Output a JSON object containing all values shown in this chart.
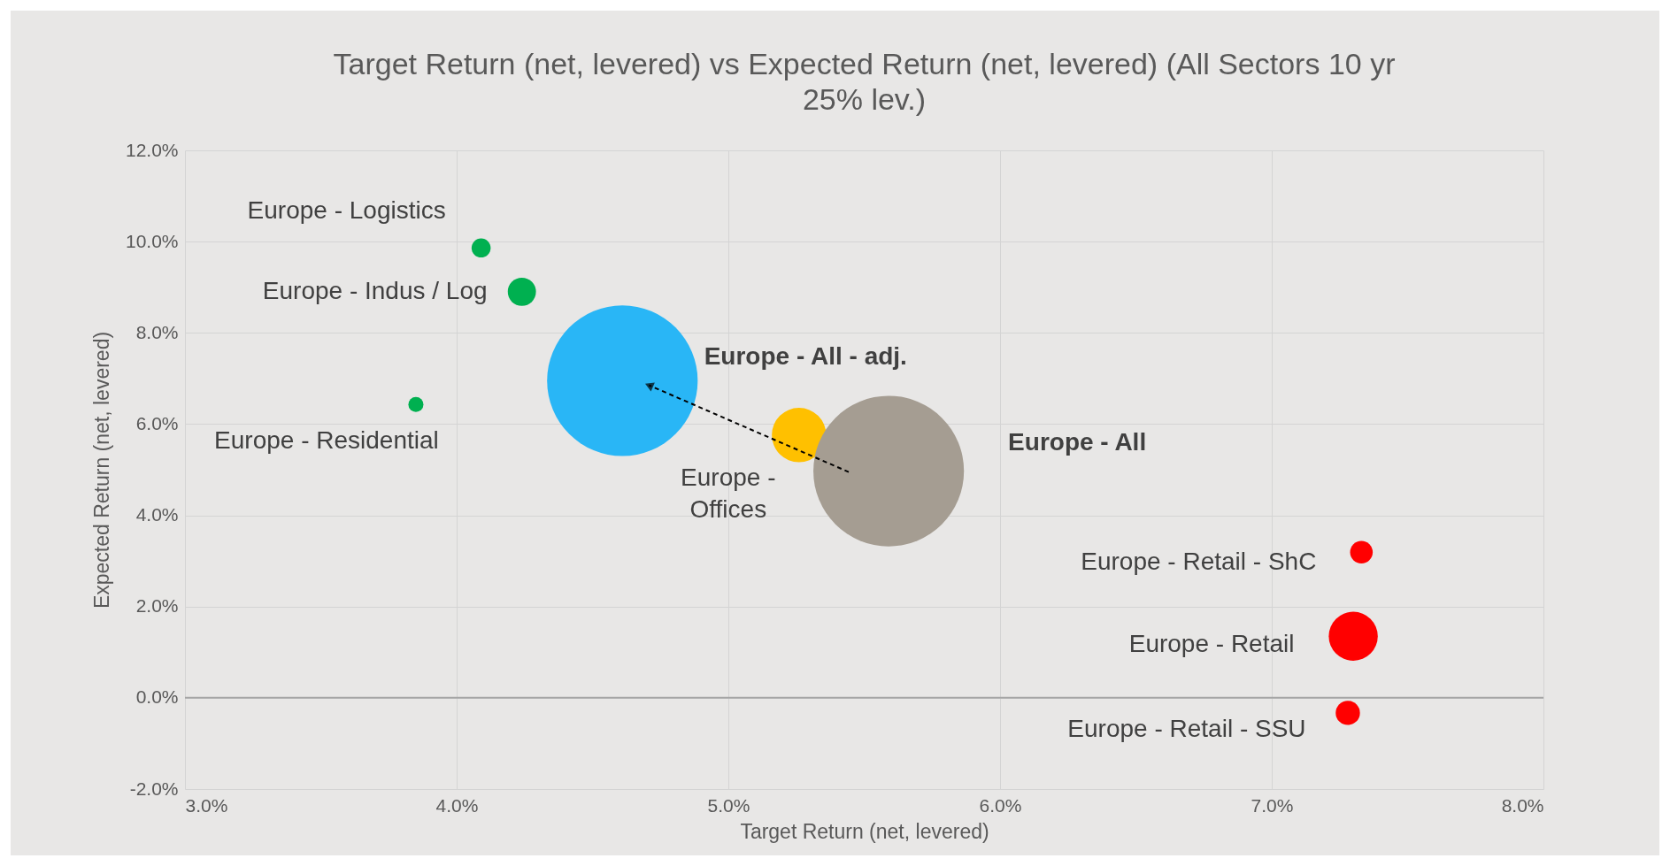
{
  "chart_data": {
    "type": "bubble",
    "title": "Target Return (net, levered) vs Expected Return (net, levered) (All Sectors 10 yr 25% lev.)",
    "xlabel": "Target Return (net, levered)",
    "ylabel": "Expected Return (net, levered)",
    "xlim": [
      3,
      8
    ],
    "ylim": [
      -2,
      12
    ],
    "xticks": [
      {
        "value": 3,
        "label": "3.0%"
      },
      {
        "value": 4,
        "label": "4.0%"
      },
      {
        "value": 5,
        "label": "5.0%"
      },
      {
        "value": 6,
        "label": "6.0%"
      },
      {
        "value": 7,
        "label": "7.0%"
      },
      {
        "value": 8,
        "label": "8.0%"
      }
    ],
    "yticks": [
      {
        "value": -2,
        "label": "-2.0%"
      },
      {
        "value": 0,
        "label": "0.0%"
      },
      {
        "value": 2,
        "label": "2.0%"
      },
      {
        "value": 4,
        "label": "4.0%"
      },
      {
        "value": 6,
        "label": "6.0%"
      },
      {
        "value": 8,
        "label": "8.0%"
      },
      {
        "value": 10,
        "label": "10.0%"
      },
      {
        "value": 12,
        "label": "12.0%"
      }
    ],
    "grid": true,
    "ref_lines": [
      {
        "axis": "y",
        "value": 0,
        "color": "#a6a6a6"
      }
    ],
    "series": [
      {
        "name": "Europe  - Logistics",
        "color": "#00b050",
        "x": [
          4.09
        ],
        "values": [
          9.86
        ],
        "sizes": [
          0.016
        ]
      },
      {
        "name": "Europe  - Indus / Log",
        "color": "#00b050",
        "x": [
          4.24
        ],
        "values": [
          8.9
        ],
        "sizes": [
          0.035
        ]
      },
      {
        "name": "Europe  - Residential",
        "color": "#00b050",
        "x": [
          3.85
        ],
        "values": [
          6.43
        ],
        "sizes": [
          0.01
        ]
      },
      {
        "name": "Europe  - All  - adj.",
        "color": "#29b6f6",
        "x": [
          4.61
        ],
        "values": [
          6.95
        ],
        "sizes": [
          1
        ]
      },
      {
        "name": "Europe  - Offices",
        "color": "#ffc000",
        "x": [
          5.26
        ],
        "values": [
          5.76
        ],
        "sizes": [
          0.13
        ]
      },
      {
        "name": "Europe  - All",
        "color": "#a59d92",
        "x": [
          5.59
        ],
        "values": [
          4.97
        ],
        "sizes": [
          1
        ]
      },
      {
        "name": "Europe  - Retail - ShC",
        "color": "#ff0000",
        "x": [
          7.33
        ],
        "values": [
          3.19
        ],
        "sizes": [
          0.0225
        ]
      },
      {
        "name": "Europe  - Retail",
        "color": "#ff0000",
        "x": [
          7.3
        ],
        "values": [
          1.35
        ],
        "sizes": [
          0.106
        ]
      },
      {
        "name": "Europe  - Retail - SSU",
        "color": "#ff0000",
        "x": [
          7.28
        ],
        "values": [
          -0.33
        ],
        "sizes": [
          0.026
        ]
      }
    ]
  }
}
